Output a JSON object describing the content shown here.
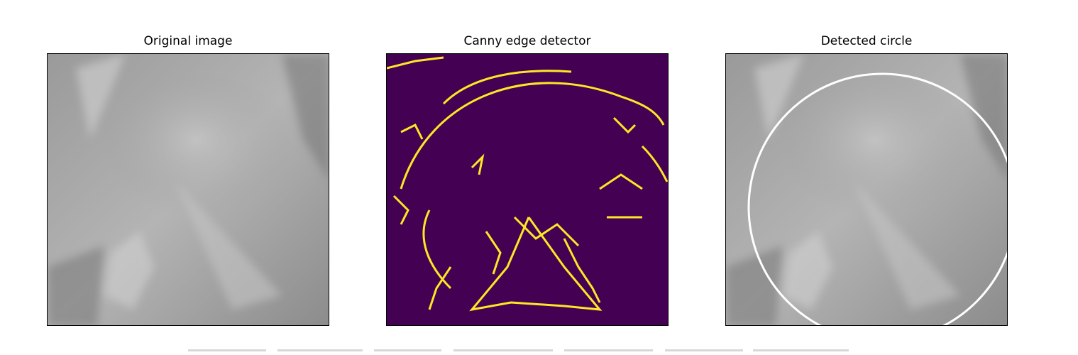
{
  "panels": [
    {
      "title": "Original image"
    },
    {
      "title": "Canny edge detector"
    },
    {
      "title": "Detected circle"
    }
  ],
  "colors": {
    "xray_dark": "#6e6e6e",
    "xray_light": "#c8c8c8",
    "edge_background": "#440154",
    "edge_line": "#fde725",
    "circle": "#ffffff"
  }
}
